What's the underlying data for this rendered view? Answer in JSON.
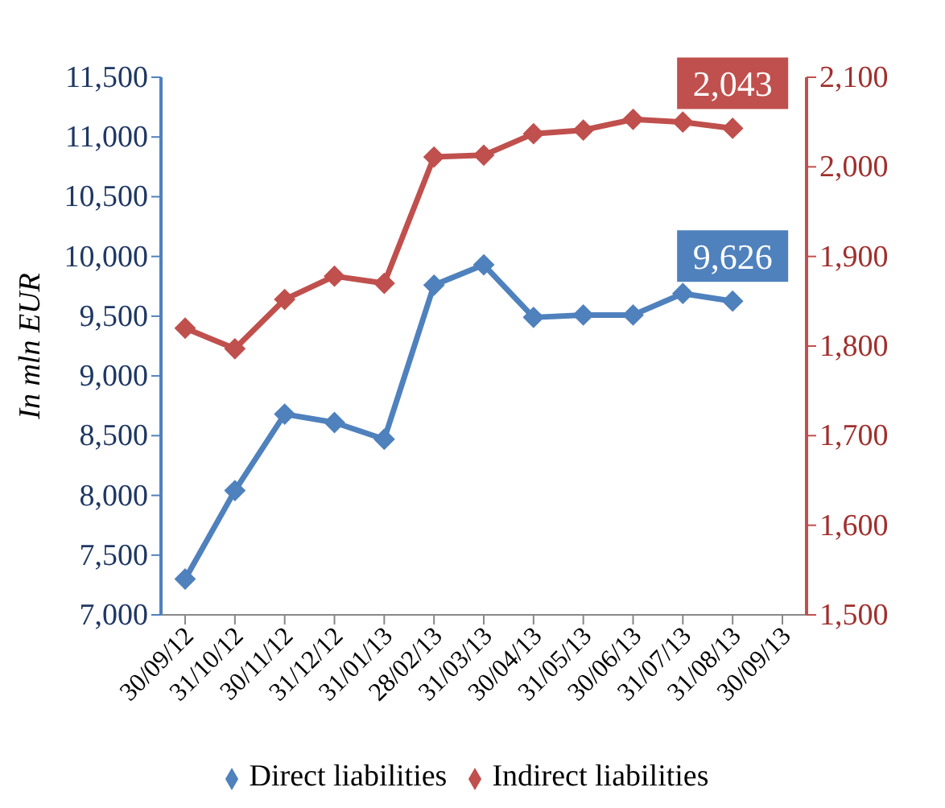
{
  "chart_data": {
    "type": "line",
    "ylabel": "In mln EUR",
    "categories": [
      "30/09/12",
      "31/10/12",
      "30/11/12",
      "31/12/12",
      "31/01/13",
      "28/02/13",
      "31/03/13",
      "30/04/13",
      "31/05/13",
      "30/06/13",
      "31/07/13",
      "31/08/13",
      "30/09/13"
    ],
    "series": [
      {
        "name": "Direct liabilities",
        "color": "#4f81bd",
        "values": [
          7300,
          8040,
          8680,
          8610,
          8470,
          9760,
          9930,
          9490,
          9510,
          9510,
          9690,
          9626,
          null
        ],
        "value_labels": [
          null,
          null,
          null,
          null,
          null,
          null,
          null,
          null,
          null,
          null,
          null,
          "9,626",
          null
        ]
      },
      {
        "name": "Indirect liabilities",
        "color": "#c0504d",
        "axis": "y2",
        "values": [
          1820,
          1797,
          1852,
          1878,
          1870,
          2011,
          2013,
          2037,
          2041,
          2053,
          2050,
          2043,
          null
        ],
        "value_labels": [
          null,
          null,
          null,
          null,
          null,
          null,
          null,
          null,
          null,
          null,
          null,
          "2,043",
          null
        ]
      }
    ],
    "ylim": [
      7000,
      11500
    ],
    "yticks": [
      {
        "value": 7000,
        "label": "7,000"
      },
      {
        "value": 7500,
        "label": "7,500"
      },
      {
        "value": 8000,
        "label": "8,000"
      },
      {
        "value": 8500,
        "label": "8,500"
      },
      {
        "value": 9000,
        "label": "9,000"
      },
      {
        "value": 9500,
        "label": "9,500"
      },
      {
        "value": 10000,
        "label": "10,000"
      },
      {
        "value": 10500,
        "label": "10,500"
      },
      {
        "value": 11000,
        "label": "11,000"
      },
      {
        "value": 11500,
        "label": "11,500"
      }
    ],
    "y2lim": [
      1500,
      2100
    ],
    "y2ticks": [
      {
        "value": 1500,
        "label": "1,500"
      },
      {
        "value": 1600,
        "label": "1,600"
      },
      {
        "value": 1700,
        "label": "1,700"
      },
      {
        "value": 1800,
        "label": "1,800"
      },
      {
        "value": 1900,
        "label": "1,900"
      },
      {
        "value": 2000,
        "label": "2,000"
      },
      {
        "value": 2100,
        "label": "2,100"
      }
    ],
    "grid": false,
    "legend": "bottom",
    "marker": "diamond",
    "line_style": "solid"
  }
}
